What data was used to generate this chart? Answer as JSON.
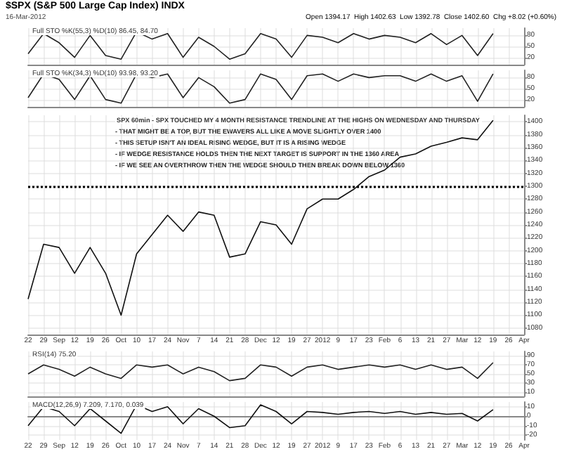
{
  "chart_data": [
    {
      "type": "line",
      "title": "$SPX (S&P 500 Large Cap Index) INDX",
      "subtitle": "Full STO %K(55,3) %D(10) 86.45, 84.70",
      "annotations": [
        "16-Mar-2012",
        "Open 1394.17  High 1402.63  Low 1392.78  Close 1402.60  Chg +8.02 (+0.60%)"
      ],
      "categories": [
        null,
        null,
        null,
        null,
        null,
        null,
        null,
        null,
        null,
        null,
        null,
        null,
        null,
        null,
        null,
        null,
        null,
        null,
        null,
        null,
        null,
        null,
        null,
        null,
        null,
        null,
        null,
        null,
        null,
        null,
        null,
        null,
        null
      ],
      "series": [
        {
          "color": "#222222",
          "values": [
            30,
            85,
            60,
            20,
            80,
            25,
            15,
            90,
            70,
            85,
            20,
            75,
            50,
            15,
            30,
            85,
            70,
            20,
            80,
            75,
            60,
            85,
            70,
            80,
            75,
            60,
            85,
            55,
            80,
            25,
            85,
            null,
            null
          ]
        }
      ],
      "ylim": [
        0,
        100
      ],
      "yticks": [
        20,
        50,
        80
      ],
      "grid": true,
      "tick_labels": "y"
    },
    {
      "type": "line",
      "subtitle": "Full STO %K(34,3) %D(10) 93.98, 93.20",
      "categories": [
        null,
        null,
        null,
        null,
        null,
        null,
        null,
        null,
        null,
        null,
        null,
        null,
        null,
        null,
        null,
        null,
        null,
        null,
        null,
        null,
        null,
        null,
        null,
        null,
        null,
        null,
        null,
        null,
        null,
        null,
        null,
        null,
        null
      ],
      "series": [
        {
          "color": "#222222",
          "values": [
            25,
            90,
            75,
            20,
            85,
            20,
            10,
            90,
            80,
            90,
            25,
            80,
            55,
            10,
            20,
            90,
            75,
            20,
            85,
            90,
            70,
            90,
            80,
            85,
            85,
            70,
            90,
            70,
            85,
            15,
            90,
            null,
            null
          ]
        }
      ],
      "ylim": [
        0,
        100
      ],
      "yticks": [
        20,
        50,
        80
      ],
      "grid": true,
      "tick_labels": "y"
    },
    {
      "type": "line",
      "subtitle": "SPX 60min - SPX TOUCHED MY 4 MONTH RESISTANCE TRENDLINE AT THE HIGHS ON WEDNESDAY AND THURSDAY",
      "annotations": [
        "- THAT MIGHT BE A TOP, BUT THE EWAVERS ALL LIKE A MOVE SLIGHTLY OVER 1400",
        "- THIS SETUP ISN'T AN IDEAL RISING WEDGE, BUT IT IS A RISING WEDGE",
        "- IF WEDGE RESISTANCE HOLDS THEN THE NEXT TARGET IS SUPPORT IN THE 1360 AREA",
        "- IF WE SEE AN OVERTHROW THEN THE WEDGE SHOULD THEN BREAK DOWN BELOW 1360"
      ],
      "categories": [
        "22",
        "29",
        "Sep",
        "12",
        "19",
        "26",
        "Oct",
        "10",
        "17",
        "24",
        "Nov",
        "7",
        "14",
        "21",
        "28",
        "Dec",
        "12",
        "19",
        "27",
        "2012",
        "9",
        "17",
        "23",
        "Feb",
        "6",
        "13",
        "21",
        "27",
        "Mar",
        "12",
        "19",
        "26",
        "Apr"
      ],
      "series": [
        {
          "color": "#111111",
          "values": [
            1125,
            1210,
            1205,
            1165,
            1205,
            1165,
            1100,
            1195,
            1225,
            1255,
            1230,
            1260,
            1255,
            1190,
            1195,
            1245,
            1240,
            1210,
            1265,
            1280,
            1280,
            1295,
            1315,
            1325,
            1345,
            1350,
            1362,
            1368,
            1375,
            1372,
            1402,
            null,
            null
          ]
        }
      ],
      "ylim": [
        1070,
        1410
      ],
      "yticks": [
        1080,
        1100,
        1120,
        1140,
        1160,
        1180,
        1200,
        1220,
        1240,
        1260,
        1280,
        1300,
        1320,
        1340,
        1360,
        1380,
        1400
      ],
      "grid": true,
      "ref_lines": [
        {
          "axis": "y",
          "value": 1300,
          "color": "#000000",
          "line_style": "dotted"
        }
      ]
    },
    {
      "type": "line",
      "subtitle": "RSI(14) 75.20",
      "categories": [
        null,
        null,
        null,
        null,
        null,
        null,
        null,
        null,
        null,
        null,
        null,
        null,
        null,
        null,
        null,
        null,
        null,
        null,
        null,
        null,
        null,
        null,
        null,
        null,
        null,
        null,
        null,
        null,
        null,
        null,
        null,
        null,
        null
      ],
      "series": [
        {
          "color": "#222222",
          "values": [
            50,
            70,
            60,
            45,
            65,
            50,
            40,
            70,
            65,
            70,
            50,
            65,
            55,
            35,
            40,
            70,
            65,
            45,
            65,
            70,
            60,
            65,
            70,
            65,
            70,
            60,
            70,
            60,
            65,
            40,
            75,
            null,
            null
          ]
        }
      ],
      "ylim": [
        0,
        100
      ],
      "yticks": [
        10,
        30,
        50,
        70,
        90
      ],
      "grid": true,
      "tick_labels": "y"
    },
    {
      "type": "line",
      "subtitle": "MACD(12,26,9) 7.209, 7.170, 0.039",
      "categories": [
        "22",
        "29",
        "Sep",
        "12",
        "19",
        "26",
        "Oct",
        "10",
        "17",
        "24",
        "Nov",
        "7",
        "14",
        "21",
        "28",
        "Dec",
        "12",
        "19",
        "27",
        "2012",
        "9",
        "17",
        "23",
        "Feb",
        "6",
        "13",
        "21",
        "27",
        "Mar",
        "12",
        "19",
        "26",
        "Apr"
      ],
      "series": [
        {
          "color": "#111111",
          "values": [
            -10,
            10,
            5,
            -10,
            8,
            -5,
            -18,
            12,
            5,
            10,
            -8,
            8,
            0,
            -12,
            -10,
            12,
            5,
            -8,
            5,
            4,
            2,
            4,
            5,
            3,
            5,
            2,
            4,
            2,
            3,
            -5,
            7,
            null,
            null
          ]
        }
      ],
      "ylim": [
        -25,
        15
      ],
      "yticks": [
        -20,
        -10,
        0,
        10
      ],
      "grid": true
    }
  ]
}
